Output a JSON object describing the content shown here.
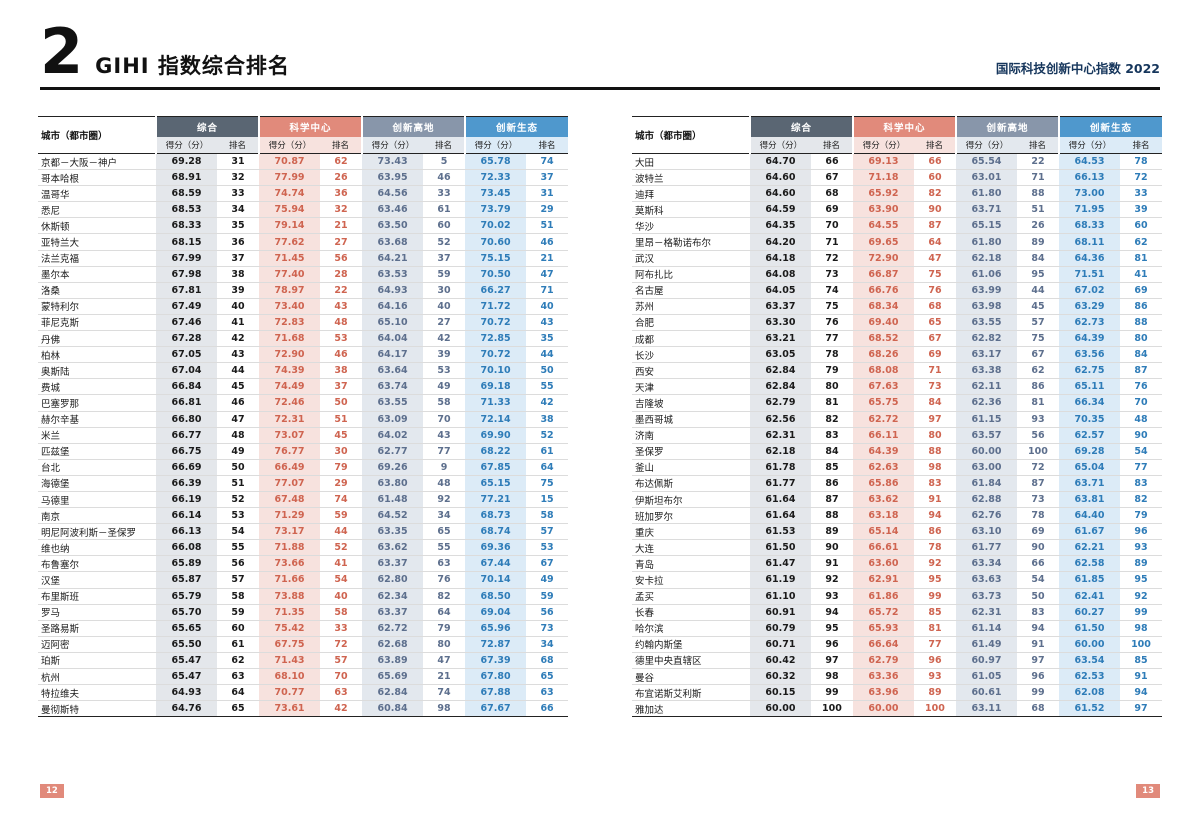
{
  "page": {
    "chapter_number": "2",
    "title": "GIHI 指数综合排名",
    "header_right": "国际科技创新中心指数 2022",
    "page_number_left": "12",
    "page_number_right": "13"
  },
  "colors": {
    "comprehensive": "#5a6673",
    "science_center": "#e18a7b",
    "innovation_highland": "#8896aa",
    "innovation_ecosystem": "#4f98cd",
    "accent_badge": "#e18a7b",
    "header_right_text": "#16365c"
  },
  "table": {
    "city_header": "城市（都市圈）",
    "score_header": "得分（分）",
    "rank_header": "排名",
    "groups": [
      {
        "label": "综合",
        "color": "#5a6673",
        "light": "#e4e7eb",
        "text": "#1a1a1a"
      },
      {
        "label": "科学中心",
        "color": "#e18a7b",
        "light": "#f7e2de",
        "text": "#cf6450"
      },
      {
        "label": "创新高地",
        "color": "#8896aa",
        "light": "#e3e8ee",
        "text": "#5d6f8d"
      },
      {
        "label": "创新生态",
        "color": "#4f98cd",
        "light": "#dcebf7",
        "text": "#2e7cb8"
      }
    ]
  },
  "left_table_rows": [
    [
      "京都－大阪－神户",
      "69.28",
      "31",
      "70.87",
      "62",
      "73.43",
      "5",
      "65.78",
      "74"
    ],
    [
      "哥本哈根",
      "68.91",
      "32",
      "77.99",
      "26",
      "63.95",
      "46",
      "72.33",
      "37"
    ],
    [
      "温哥华",
      "68.59",
      "33",
      "74.74",
      "36",
      "64.56",
      "33",
      "73.45",
      "31"
    ],
    [
      "悉尼",
      "68.53",
      "34",
      "75.94",
      "32",
      "63.46",
      "61",
      "73.79",
      "29"
    ],
    [
      "休斯顿",
      "68.33",
      "35",
      "79.14",
      "21",
      "63.50",
      "60",
      "70.02",
      "51"
    ],
    [
      "亚特兰大",
      "68.15",
      "36",
      "77.62",
      "27",
      "63.68",
      "52",
      "70.60",
      "46"
    ],
    [
      "法兰克福",
      "67.99",
      "37",
      "71.45",
      "56",
      "64.21",
      "37",
      "75.15",
      "21"
    ],
    [
      "墨尔本",
      "67.98",
      "38",
      "77.40",
      "28",
      "63.53",
      "59",
      "70.50",
      "47"
    ],
    [
      "洛桑",
      "67.81",
      "39",
      "78.97",
      "22",
      "64.93",
      "30",
      "66.27",
      "71"
    ],
    [
      "蒙特利尔",
      "67.49",
      "40",
      "73.40",
      "43",
      "64.16",
      "40",
      "71.72",
      "40"
    ],
    [
      "菲尼克斯",
      "67.46",
      "41",
      "72.83",
      "48",
      "65.10",
      "27",
      "70.72",
      "43"
    ],
    [
      "丹佛",
      "67.28",
      "42",
      "71.68",
      "53",
      "64.04",
      "42",
      "72.85",
      "35"
    ],
    [
      "柏林",
      "67.05",
      "43",
      "72.90",
      "46",
      "64.17",
      "39",
      "70.72",
      "44"
    ],
    [
      "奥斯陆",
      "67.04",
      "44",
      "74.39",
      "38",
      "63.64",
      "53",
      "70.10",
      "50"
    ],
    [
      "费城",
      "66.84",
      "45",
      "74.49",
      "37",
      "63.74",
      "49",
      "69.18",
      "55"
    ],
    [
      "巴塞罗那",
      "66.81",
      "46",
      "72.46",
      "50",
      "63.55",
      "58",
      "71.33",
      "42"
    ],
    [
      "赫尔辛基",
      "66.80",
      "47",
      "72.31",
      "51",
      "63.09",
      "70",
      "72.14",
      "38"
    ],
    [
      "米兰",
      "66.77",
      "48",
      "73.07",
      "45",
      "64.02",
      "43",
      "69.90",
      "52"
    ],
    [
      "匹兹堡",
      "66.75",
      "49",
      "76.77",
      "30",
      "62.77",
      "77",
      "68.22",
      "61"
    ],
    [
      "台北",
      "66.69",
      "50",
      "66.49",
      "79",
      "69.26",
      "9",
      "67.85",
      "64"
    ],
    [
      "海德堡",
      "66.39",
      "51",
      "77.07",
      "29",
      "63.80",
      "48",
      "65.15",
      "75"
    ],
    [
      "马德里",
      "66.19",
      "52",
      "67.48",
      "74",
      "61.48",
      "92",
      "77.21",
      "15"
    ],
    [
      "南京",
      "66.14",
      "53",
      "71.29",
      "59",
      "64.52",
      "34",
      "68.73",
      "58"
    ],
    [
      "明尼阿波利斯－圣保罗",
      "66.13",
      "54",
      "73.17",
      "44",
      "63.35",
      "65",
      "68.74",
      "57"
    ],
    [
      "维也纳",
      "66.08",
      "55",
      "71.88",
      "52",
      "63.62",
      "55",
      "69.36",
      "53"
    ],
    [
      "布鲁塞尔",
      "65.89",
      "56",
      "73.66",
      "41",
      "63.37",
      "63",
      "67.44",
      "67"
    ],
    [
      "汉堡",
      "65.87",
      "57",
      "71.66",
      "54",
      "62.80",
      "76",
      "70.14",
      "49"
    ],
    [
      "布里斯班",
      "65.79",
      "58",
      "73.88",
      "40",
      "62.34",
      "82",
      "68.50",
      "59"
    ],
    [
      "罗马",
      "65.70",
      "59",
      "71.35",
      "58",
      "63.37",
      "64",
      "69.04",
      "56"
    ],
    [
      "圣路易斯",
      "65.65",
      "60",
      "75.42",
      "33",
      "62.72",
      "79",
      "65.96",
      "73"
    ],
    [
      "迈阿密",
      "65.50",
      "61",
      "67.75",
      "72",
      "62.68",
      "80",
      "72.87",
      "34"
    ],
    [
      "珀斯",
      "65.47",
      "62",
      "71.43",
      "57",
      "63.89",
      "47",
      "67.39",
      "68"
    ],
    [
      "杭州",
      "65.47",
      "63",
      "68.10",
      "70",
      "65.69",
      "21",
      "67.80",
      "65"
    ],
    [
      "特拉维夫",
      "64.93",
      "64",
      "70.77",
      "63",
      "62.84",
      "74",
      "67.88",
      "63"
    ],
    [
      "曼彻斯特",
      "64.76",
      "65",
      "73.61",
      "42",
      "60.84",
      "98",
      "67.67",
      "66"
    ]
  ],
  "right_table_rows": [
    [
      "大田",
      "64.70",
      "66",
      "69.13",
      "66",
      "65.54",
      "22",
      "64.53",
      "78"
    ],
    [
      "波特兰",
      "64.60",
      "67",
      "71.18",
      "60",
      "63.01",
      "71",
      "66.13",
      "72"
    ],
    [
      "迪拜",
      "64.60",
      "68",
      "65.92",
      "82",
      "61.80",
      "88",
      "73.00",
      "33"
    ],
    [
      "莫斯科",
      "64.59",
      "69",
      "63.90",
      "90",
      "63.71",
      "51",
      "71.95",
      "39"
    ],
    [
      "华沙",
      "64.35",
      "70",
      "64.55",
      "87",
      "65.15",
      "26",
      "68.33",
      "60"
    ],
    [
      "里昂－格勒诺布尔",
      "64.20",
      "71",
      "69.65",
      "64",
      "61.80",
      "89",
      "68.11",
      "62"
    ],
    [
      "武汉",
      "64.18",
      "72",
      "72.90",
      "47",
      "62.18",
      "84",
      "64.36",
      "81"
    ],
    [
      "阿布扎比",
      "64.08",
      "73",
      "66.87",
      "75",
      "61.06",
      "95",
      "71.51",
      "41"
    ],
    [
      "名古屋",
      "64.05",
      "74",
      "66.76",
      "76",
      "63.99",
      "44",
      "67.02",
      "69"
    ],
    [
      "苏州",
      "63.37",
      "75",
      "68.34",
      "68",
      "63.98",
      "45",
      "63.29",
      "86"
    ],
    [
      "合肥",
      "63.30",
      "76",
      "69.40",
      "65",
      "63.55",
      "57",
      "62.73",
      "88"
    ],
    [
      "成都",
      "63.21",
      "77",
      "68.52",
      "67",
      "62.82",
      "75",
      "64.39",
      "80"
    ],
    [
      "长沙",
      "63.05",
      "78",
      "68.26",
      "69",
      "63.17",
      "67",
      "63.56",
      "84"
    ],
    [
      "西安",
      "62.84",
      "79",
      "68.08",
      "71",
      "63.38",
      "62",
      "62.75",
      "87"
    ],
    [
      "天津",
      "62.84",
      "80",
      "67.63",
      "73",
      "62.11",
      "86",
      "65.11",
      "76"
    ],
    [
      "吉隆坡",
      "62.79",
      "81",
      "65.75",
      "84",
      "62.36",
      "81",
      "66.34",
      "70"
    ],
    [
      "墨西哥城",
      "62.56",
      "82",
      "62.72",
      "97",
      "61.15",
      "93",
      "70.35",
      "48"
    ],
    [
      "济南",
      "62.31",
      "83",
      "66.11",
      "80",
      "63.57",
      "56",
      "62.57",
      "90"
    ],
    [
      "圣保罗",
      "62.18",
      "84",
      "64.39",
      "88",
      "60.00",
      "100",
      "69.28",
      "54"
    ],
    [
      "釜山",
      "61.78",
      "85",
      "62.63",
      "98",
      "63.00",
      "72",
      "65.04",
      "77"
    ],
    [
      "布达佩斯",
      "61.77",
      "86",
      "65.86",
      "83",
      "61.84",
      "87",
      "63.71",
      "83"
    ],
    [
      "伊斯坦布尔",
      "61.64",
      "87",
      "63.62",
      "91",
      "62.88",
      "73",
      "63.81",
      "82"
    ],
    [
      "班加罗尔",
      "61.64",
      "88",
      "63.18",
      "94",
      "62.76",
      "78",
      "64.40",
      "79"
    ],
    [
      "重庆",
      "61.53",
      "89",
      "65.14",
      "86",
      "63.10",
      "69",
      "61.67",
      "96"
    ],
    [
      "大连",
      "61.50",
      "90",
      "66.61",
      "78",
      "61.77",
      "90",
      "62.21",
      "93"
    ],
    [
      "青岛",
      "61.47",
      "91",
      "63.60",
      "92",
      "63.34",
      "66",
      "62.58",
      "89"
    ],
    [
      "安卡拉",
      "61.19",
      "92",
      "62.91",
      "95",
      "63.63",
      "54",
      "61.85",
      "95"
    ],
    [
      "孟买",
      "61.10",
      "93",
      "61.86",
      "99",
      "63.73",
      "50",
      "62.41",
      "92"
    ],
    [
      "长春",
      "60.91",
      "94",
      "65.72",
      "85",
      "62.31",
      "83",
      "60.27",
      "99"
    ],
    [
      "哈尔滨",
      "60.79",
      "95",
      "65.93",
      "81",
      "61.14",
      "94",
      "61.50",
      "98"
    ],
    [
      "约翰内斯堡",
      "60.71",
      "96",
      "66.64",
      "77",
      "61.49",
      "91",
      "60.00",
      "100"
    ],
    [
      "德里中央直辖区",
      "60.42",
      "97",
      "62.79",
      "96",
      "60.97",
      "97",
      "63.54",
      "85"
    ],
    [
      "曼谷",
      "60.32",
      "98",
      "63.36",
      "93",
      "61.05",
      "96",
      "62.53",
      "91"
    ],
    [
      "布宜诺斯艾利斯",
      "60.15",
      "99",
      "63.96",
      "89",
      "60.61",
      "99",
      "62.08",
      "94"
    ],
    [
      "雅加达",
      "60.00",
      "100",
      "60.00",
      "100",
      "63.11",
      "68",
      "61.52",
      "97"
    ]
  ]
}
